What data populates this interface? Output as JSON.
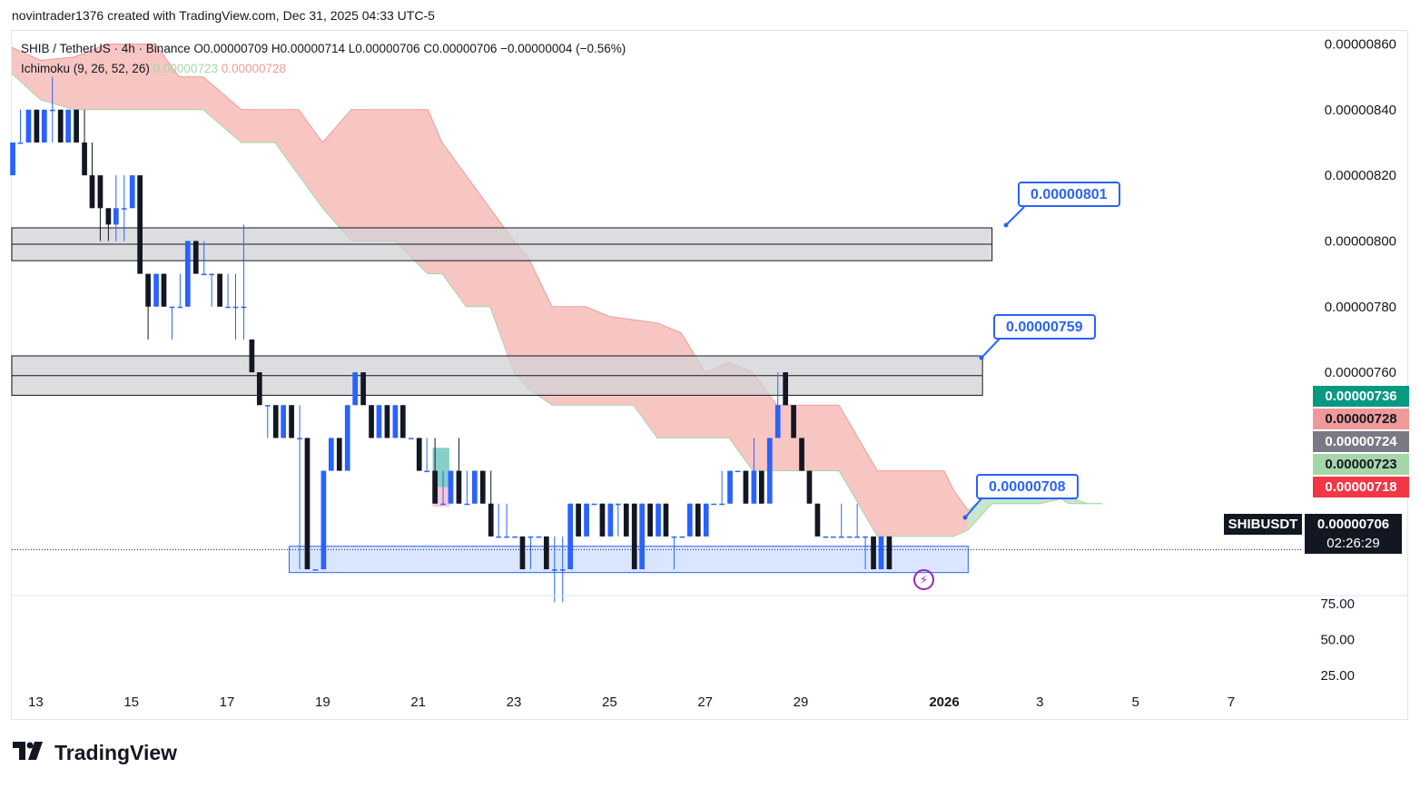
{
  "caption": "novintrader1376 created with TradingView.com, Dec 31, 2025 04:33 UTC-5",
  "legend": {
    "symbol_line": "SHIB / TetherUS · 4h · Binance  O0.00000709  H0.00000714  L0.00000706  C0.00000706  −0.00000004 (−0.56%)",
    "indicator_name": "Ichimoku (9, 26, 52, 26)",
    "indicator_value_1": "0.00000723",
    "indicator_value_2": "0.00000728"
  },
  "price_tags": {
    "tag_736": "0.00000736",
    "tag_728": "0.00000728",
    "tag_724": "0.00000724",
    "tag_723": "0.00000723",
    "tag_718": "0.00000718",
    "symbol": "SHIBUSDT",
    "current_price": "0.00000706",
    "countdown": "02:26:29"
  },
  "callouts": {
    "c801": "0.00000801",
    "c759": "0.00000759",
    "c708": "0.00000708"
  },
  "colors": {
    "up": "#2962ff",
    "down": "#131722",
    "cloud_bear": "#f8c6c2",
    "cloud_bull": "#c8e6c9",
    "zone_gray": "#d1d1d6",
    "zone_blue": "#d6e3ff",
    "tag_green": "#089981",
    "tag_pink": "#ef9a9a",
    "tag_gray": "#787b86",
    "tag_lightgreen": "#a5d6a7",
    "tag_red": "#f23645"
  },
  "brand": {
    "text": "TradingView"
  },
  "chart_data": {
    "type": "candlestick",
    "title": "SHIB / TetherUS · 4h · Binance",
    "y_axis_ticks": [
      "0.00000860",
      "0.00000840",
      "0.00000820",
      "0.00000800",
      "0.00000780",
      "0.00000760"
    ],
    "y_axis_ticks_values": [
      8.6e-06,
      8.4e-06,
      8.2e-06,
      8e-06,
      7.8e-06,
      7.6e-06
    ],
    "y_range": [
      6.92e-06,
      8.64e-06
    ],
    "x_axis_ticks": [
      "13",
      "15",
      "17",
      "19",
      "21",
      "23",
      "25",
      "27",
      "29",
      "2026",
      "3",
      "5",
      "7"
    ],
    "x_axis_ticks_days": [
      13,
      15,
      17,
      19,
      21,
      23,
      25,
      27,
      29,
      32,
      34,
      36,
      38
    ],
    "x_range_days": [
      12.5,
      39.5
    ],
    "oscillator_ticks": [
      "75.00",
      "50.00",
      "25.00"
    ],
    "oscillator_ticks_values": [
      75,
      50,
      25
    ],
    "oscillator_range": [
      15,
      80
    ],
    "zones": [
      {
        "name": "resistance-801",
        "from_day": 12.5,
        "to_day": 33.0,
        "low": 7.94e-06,
        "high": 8.04e-06,
        "mid": 7.99e-06
      },
      {
        "name": "resistance-759",
        "from_day": 12.5,
        "to_day": 32.8,
        "low": 7.53e-06,
        "high": 7.65e-06,
        "mid": 7.59e-06
      },
      {
        "name": "support-708",
        "from_day": 18.3,
        "to_day": 32.5,
        "low": 6.99e-06,
        "high": 7.07e-06
      }
    ],
    "reference_line": {
      "price": 7.06e-06,
      "from_day": 12.5,
      "to_day": 39.5
    },
    "small_box_bull": {
      "from_day": 21.3,
      "to_day": 21.65,
      "low": 7.25e-06,
      "high": 7.37e-06
    },
    "small_box_bear": {
      "from_day": 21.3,
      "to_day": 21.65,
      "low": 7.19e-06,
      "high": 7.25e-06
    },
    "cloud_upper": [
      [
        12.5,
        8.59e-06
      ],
      [
        13.1,
        8.55e-06
      ],
      [
        13.8,
        8.56e-06
      ],
      [
        14.5,
        8.6e-06
      ],
      [
        15.5,
        8.6e-06
      ],
      [
        16.0,
        8.5e-06
      ],
      [
        16.5,
        8.5e-06
      ],
      [
        17.3,
        8.4e-06
      ],
      [
        18.0,
        8.4e-06
      ],
      [
        18.5,
        8.4e-06
      ],
      [
        19.0,
        8.3e-06
      ],
      [
        19.6,
        8.4e-06
      ],
      [
        20.5,
        8.4e-06
      ],
      [
        21.2,
        8.4e-06
      ],
      [
        21.5,
        8.3e-06
      ],
      [
        22.0,
        8.2e-06
      ],
      [
        22.5,
        8.1e-06
      ],
      [
        23.0,
        8e-06
      ],
      [
        23.3,
        7.95e-06
      ],
      [
        23.8,
        7.8e-06
      ],
      [
        24.5,
        7.8e-06
      ],
      [
        25.0,
        7.77e-06
      ],
      [
        25.5,
        7.76e-06
      ],
      [
        26.0,
        7.75e-06
      ],
      [
        26.5,
        7.72e-06
      ],
      [
        27.0,
        7.6e-06
      ],
      [
        27.5,
        7.63e-06
      ],
      [
        28.0,
        7.6e-06
      ],
      [
        28.5,
        7.5e-06
      ],
      [
        29.0,
        7.5e-06
      ],
      [
        29.8,
        7.5e-06
      ],
      [
        30.2,
        7.4e-06
      ],
      [
        30.6,
        7.3e-06
      ],
      [
        31.2,
        7.3e-06
      ],
      [
        31.6,
        7.3e-06
      ],
      [
        32.0,
        7.3e-06
      ],
      [
        32.2,
        7.24e-06
      ],
      [
        32.5,
        7.18e-06
      ],
      [
        33.0,
        7.24e-06
      ],
      [
        34.0,
        7.26e-06
      ],
      [
        34.6,
        7.2e-06
      ],
      [
        35.0,
        7.2e-06
      ],
      [
        35.3,
        7.2e-06
      ]
    ],
    "cloud_lower": [
      [
        12.5,
        8.51e-06
      ],
      [
        13.1,
        8.43e-06
      ],
      [
        13.8,
        8.4e-06
      ],
      [
        14.5,
        8.4e-06
      ],
      [
        15.5,
        8.4e-06
      ],
      [
        16.0,
        8.4e-06
      ],
      [
        16.5,
        8.4e-06
      ],
      [
        17.3,
        8.3e-06
      ],
      [
        18.0,
        8.3e-06
      ],
      [
        18.5,
        8.2e-06
      ],
      [
        19.0,
        8.1e-06
      ],
      [
        19.6,
        8e-06
      ],
      [
        20.5,
        8e-06
      ],
      [
        21.2,
        7.9e-06
      ],
      [
        21.5,
        7.9e-06
      ],
      [
        22.0,
        7.8e-06
      ],
      [
        22.5,
        7.8e-06
      ],
      [
        23.0,
        7.6e-06
      ],
      [
        23.3,
        7.55e-06
      ],
      [
        23.8,
        7.5e-06
      ],
      [
        24.5,
        7.5e-06
      ],
      [
        25.0,
        7.5e-06
      ],
      [
        25.5,
        7.5e-06
      ],
      [
        26.0,
        7.4e-06
      ],
      [
        26.5,
        7.4e-06
      ],
      [
        27.0,
        7.4e-06
      ],
      [
        27.5,
        7.4e-06
      ],
      [
        28.0,
        7.3e-06
      ],
      [
        28.5,
        7.3e-06
      ],
      [
        29.0,
        7.3e-06
      ],
      [
        29.8,
        7.3e-06
      ],
      [
        30.2,
        7.2e-06
      ],
      [
        30.6,
        7.1e-06
      ],
      [
        31.2,
        7.1e-06
      ],
      [
        31.6,
        7.1e-06
      ],
      [
        32.0,
        7.1e-06
      ],
      [
        32.2,
        7.1e-06
      ],
      [
        32.5,
        7.12e-06
      ],
      [
        33.0,
        7.2e-06
      ],
      [
        34.0,
        7.2e-06
      ],
      [
        34.6,
        7.22e-06
      ],
      [
        35.0,
        7.2e-06
      ],
      [
        35.3,
        7.2e-06
      ]
    ],
    "cloud_green_span": [
      32.55,
      35.0
    ],
    "candles": [
      [
        12.52,
        8.2e-06,
        8.3e-06,
        8.2e-06,
        8.3e-06
      ],
      [
        12.68,
        8.3e-06,
        8.4e-06,
        8.3e-06,
        8.3e-06
      ],
      [
        12.85,
        8.3e-06,
        8.4e-06,
        8.3e-06,
        8.4e-06
      ],
      [
        13.02,
        8.4e-06,
        8.4e-06,
        8.3e-06,
        8.3e-06
      ],
      [
        13.18,
        8.3e-06,
        8.4e-06,
        8.3e-06,
        8.4e-06
      ],
      [
        13.35,
        8.4e-06,
        8.5e-06,
        8.3e-06,
        8.4e-06
      ],
      [
        13.52,
        8.4e-06,
        8.4e-06,
        8.3e-06,
        8.3e-06
      ],
      [
        13.68,
        8.3e-06,
        8.4e-06,
        8.3e-06,
        8.4e-06
      ],
      [
        13.85,
        8.4e-06,
        8.4e-06,
        8.3e-06,
        8.3e-06
      ],
      [
        14.02,
        8.3e-06,
        8.4e-06,
        8.2e-06,
        8.2e-06
      ],
      [
        14.18,
        8.2e-06,
        8.3e-06,
        8.1e-06,
        8.1e-06
      ],
      [
        14.35,
        8.2e-06,
        8.2e-06,
        8e-06,
        8.1e-06
      ],
      [
        14.52,
        8.1e-06,
        8.1e-06,
        8e-06,
        8.05e-06
      ],
      [
        14.68,
        8.05e-06,
        8.2e-06,
        8e-06,
        8.1e-06
      ],
      [
        14.85,
        8.1e-06,
        8.2e-06,
        8e-06,
        8.1e-06
      ],
      [
        15.02,
        8.1e-06,
        8.2e-06,
        8.1e-06,
        8.2e-06
      ],
      [
        15.18,
        8.2e-06,
        8.2e-06,
        7.9e-06,
        7.9e-06
      ],
      [
        15.35,
        7.9e-06,
        7.9e-06,
        7.7e-06,
        7.8e-06
      ],
      [
        15.52,
        7.8e-06,
        7.9e-06,
        7.8e-06,
        7.9e-06
      ],
      [
        15.68,
        7.9e-06,
        7.9e-06,
        7.8e-06,
        7.8e-06
      ],
      [
        15.85,
        7.8e-06,
        7.8e-06,
        7.7e-06,
        7.8e-06
      ],
      [
        16.02,
        7.8e-06,
        7.9e-06,
        7.8e-06,
        7.8e-06
      ],
      [
        16.18,
        7.8e-06,
        8e-06,
        7.8e-06,
        8e-06
      ],
      [
        16.35,
        8e-06,
        8e-06,
        7.9e-06,
        7.9e-06
      ],
      [
        16.52,
        7.9e-06,
        8e-06,
        7.9e-06,
        7.9e-06
      ],
      [
        16.68,
        7.9e-06,
        7.9e-06,
        7.8e-06,
        7.9e-06
      ],
      [
        16.85,
        7.9e-06,
        7.9e-06,
        7.8e-06,
        7.8e-06
      ],
      [
        17.02,
        7.8e-06,
        7.9e-06,
        7.8e-06,
        7.8e-06
      ],
      [
        17.18,
        7.8e-06,
        7.9e-06,
        7.7e-06,
        7.8e-06
      ],
      [
        17.35,
        7.8e-06,
        8.05e-06,
        7.7e-06,
        7.8e-06
      ],
      [
        17.52,
        7.7e-06,
        7.7e-06,
        7.6e-06,
        7.6e-06
      ],
      [
        17.68,
        7.6e-06,
        7.6e-06,
        7.5e-06,
        7.5e-06
      ],
      [
        17.85,
        7.5e-06,
        7.5e-06,
        7.4e-06,
        7.5e-06
      ],
      [
        18.02,
        7.5e-06,
        7.5e-06,
        7.4e-06,
        7.4e-06
      ],
      [
        18.18,
        7.4e-06,
        7.5e-06,
        7.4e-06,
        7.5e-06
      ],
      [
        18.35,
        7.5e-06,
        7.5e-06,
        7.4e-06,
        7.4e-06
      ],
      [
        18.52,
        7.4e-06,
        7.5e-06,
        7e-06,
        7.4e-06
      ],
      [
        18.68,
        7.4e-06,
        7.4e-06,
        7e-06,
        7e-06
      ],
      [
        18.85,
        7e-06,
        7e-06,
        7e-06,
        7e-06
      ],
      [
        19.02,
        7e-06,
        7.3e-06,
        7e-06,
        7.3e-06
      ],
      [
        19.18,
        7.3e-06,
        7.4e-06,
        7.3e-06,
        7.4e-06
      ],
      [
        19.35,
        7.4e-06,
        7.4e-06,
        7.3e-06,
        7.3e-06
      ],
      [
        19.52,
        7.3e-06,
        7.5e-06,
        7.3e-06,
        7.5e-06
      ],
      [
        19.68,
        7.5e-06,
        7.6e-06,
        7.5e-06,
        7.6e-06
      ],
      [
        19.85,
        7.6e-06,
        7.6e-06,
        7.5e-06,
        7.5e-06
      ],
      [
        20.02,
        7.5e-06,
        7.5e-06,
        7.4e-06,
        7.4e-06
      ],
      [
        20.18,
        7.4e-06,
        7.5e-06,
        7.4e-06,
        7.5e-06
      ],
      [
        20.35,
        7.5e-06,
        7.5e-06,
        7.4e-06,
        7.4e-06
      ],
      [
        20.52,
        7.4e-06,
        7.5e-06,
        7.4e-06,
        7.5e-06
      ],
      [
        20.68,
        7.5e-06,
        7.5e-06,
        7.4e-06,
        7.4e-06
      ],
      [
        20.85,
        7.4e-06,
        7.4e-06,
        7.4e-06,
        7.4e-06
      ],
      [
        21.02,
        7.4e-06,
        7.4e-06,
        7.3e-06,
        7.3e-06
      ],
      [
        21.18,
        7.3e-06,
        7.4e-06,
        7.3e-06,
        7.3e-06
      ],
      [
        21.35,
        7.3e-06,
        7.4e-06,
        7.2e-06,
        7.2e-06
      ],
      [
        21.52,
        7.2e-06,
        7.3e-06,
        7.2e-06,
        7.2e-06
      ],
      [
        21.68,
        7.2e-06,
        7.3e-06,
        7.2e-06,
        7.3e-06
      ],
      [
        21.85,
        7.3e-06,
        7.4e-06,
        7.2e-06,
        7.2e-06
      ],
      [
        22.02,
        7.2e-06,
        7.3e-06,
        7.2e-06,
        7.2e-06
      ],
      [
        22.18,
        7.2e-06,
        7.3e-06,
        7.2e-06,
        7.3e-06
      ],
      [
        22.35,
        7.3e-06,
        7.3e-06,
        7.2e-06,
        7.2e-06
      ],
      [
        22.52,
        7.2e-06,
        7.3e-06,
        7.1e-06,
        7.1e-06
      ],
      [
        22.68,
        7.1e-06,
        7.2e-06,
        7.1e-06,
        7.1e-06
      ],
      [
        22.85,
        7.1e-06,
        7.2e-06,
        7.1e-06,
        7.1e-06
      ],
      [
        23.02,
        7.1e-06,
        7.1e-06,
        7.1e-06,
        7.1e-06
      ],
      [
        23.18,
        7.1e-06,
        7.1e-06,
        7e-06,
        7e-06
      ],
      [
        23.35,
        7.1e-06,
        7.1e-06,
        7e-06,
        7.1e-06
      ],
      [
        23.52,
        7.1e-06,
        7.1e-06,
        7.1e-06,
        7.1e-06
      ],
      [
        23.68,
        7.1e-06,
        7.1e-06,
        7e-06,
        7e-06
      ],
      [
        23.85,
        7e-06,
        7.1e-06,
        6.9e-06,
        7e-06
      ],
      [
        24.02,
        7e-06,
        7.1e-06,
        6.9e-06,
        7e-06
      ],
      [
        24.18,
        7e-06,
        7.2e-06,
        7e-06,
        7.2e-06
      ],
      [
        24.35,
        7.2e-06,
        7.2e-06,
        7.1e-06,
        7.1e-06
      ],
      [
        24.52,
        7.1e-06,
        7.2e-06,
        7.1e-06,
        7.2e-06
      ],
      [
        24.68,
        7.2e-06,
        7.2e-06,
        7.2e-06,
        7.2e-06
      ],
      [
        24.85,
        7.2e-06,
        7.2e-06,
        7.1e-06,
        7.1e-06
      ],
      [
        25.02,
        7.1e-06,
        7.2e-06,
        7.1e-06,
        7.2e-06
      ],
      [
        25.18,
        7.2e-06,
        7.2e-06,
        7.1e-06,
        7.2e-06
      ],
      [
        25.35,
        7.2e-06,
        7.2e-06,
        7.1e-06,
        7.1e-06
      ],
      [
        25.52,
        7.2e-06,
        7.2e-06,
        7e-06,
        7e-06
      ],
      [
        25.68,
        7e-06,
        7.2e-06,
        7e-06,
        7.2e-06
      ],
      [
        25.85,
        7.2e-06,
        7.2e-06,
        7.1e-06,
        7.1e-06
      ],
      [
        26.02,
        7.1e-06,
        7.2e-06,
        7.1e-06,
        7.2e-06
      ],
      [
        26.18,
        7.2e-06,
        7.2e-06,
        7.1e-06,
        7.1e-06
      ],
      [
        26.35,
        7.1e-06,
        7.1e-06,
        7e-06,
        7.1e-06
      ],
      [
        26.52,
        7.1e-06,
        7.1e-06,
        7.1e-06,
        7.1e-06
      ],
      [
        26.68,
        7.1e-06,
        7.2e-06,
        7.1e-06,
        7.2e-06
      ],
      [
        26.85,
        7.2e-06,
        7.2e-06,
        7.1e-06,
        7.1e-06
      ],
      [
        27.02,
        7.1e-06,
        7.2e-06,
        7.1e-06,
        7.2e-06
      ],
      [
        27.18,
        7.2e-06,
        7.2e-06,
        7.2e-06,
        7.2e-06
      ],
      [
        27.35,
        7.2e-06,
        7.3e-06,
        7.2e-06,
        7.2e-06
      ],
      [
        27.52,
        7.2e-06,
        7.3e-06,
        7.2e-06,
        7.3e-06
      ],
      [
        27.68,
        7.3e-06,
        7.3e-06,
        7.3e-06,
        7.3e-06
      ],
      [
        27.85,
        7.3e-06,
        7.3e-06,
        7.2e-06,
        7.2e-06
      ],
      [
        28.02,
        7.2e-06,
        7.4e-06,
        7.2e-06,
        7.3e-06
      ],
      [
        28.18,
        7.3e-06,
        7.3e-06,
        7.2e-06,
        7.2e-06
      ],
      [
        28.35,
        7.2e-06,
        7.4e-06,
        7.2e-06,
        7.4e-06
      ],
      [
        28.52,
        7.4e-06,
        7.6e-06,
        7.4e-06,
        7.5e-06
      ],
      [
        28.68,
        7.6e-06,
        7.6e-06,
        7.5e-06,
        7.5e-06
      ],
      [
        28.85,
        7.5e-06,
        7.5e-06,
        7.4e-06,
        7.4e-06
      ],
      [
        29.02,
        7.4e-06,
        7.4e-06,
        7.3e-06,
        7.3e-06
      ],
      [
        29.18,
        7.3e-06,
        7.3e-06,
        7.2e-06,
        7.2e-06
      ],
      [
        29.35,
        7.2e-06,
        7.2e-06,
        7.1e-06,
        7.1e-06
      ],
      [
        29.52,
        7.1e-06,
        7.1e-06,
        7.1e-06,
        7.1e-06
      ],
      [
        29.68,
        7.1e-06,
        7.1e-06,
        7.1e-06,
        7.1e-06
      ],
      [
        29.85,
        7.1e-06,
        7.2e-06,
        7.1e-06,
        7.1e-06
      ],
      [
        30.02,
        7.1e-06,
        7.1e-06,
        7.1e-06,
        7.1e-06
      ],
      [
        30.18,
        7.1e-06,
        7.2e-06,
        7.1e-06,
        7.1e-06
      ],
      [
        30.35,
        7.1e-06,
        7.1e-06,
        7e-06,
        7.1e-06
      ],
      [
        30.52,
        7.1e-06,
        7.1e-06,
        7e-06,
        7e-06
      ],
      [
        30.68,
        7e-06,
        7.1e-06,
        7e-06,
        7.1e-06
      ],
      [
        30.85,
        7.1e-06,
        7.1e-06,
        7e-06,
        7e-06
      ]
    ]
  }
}
